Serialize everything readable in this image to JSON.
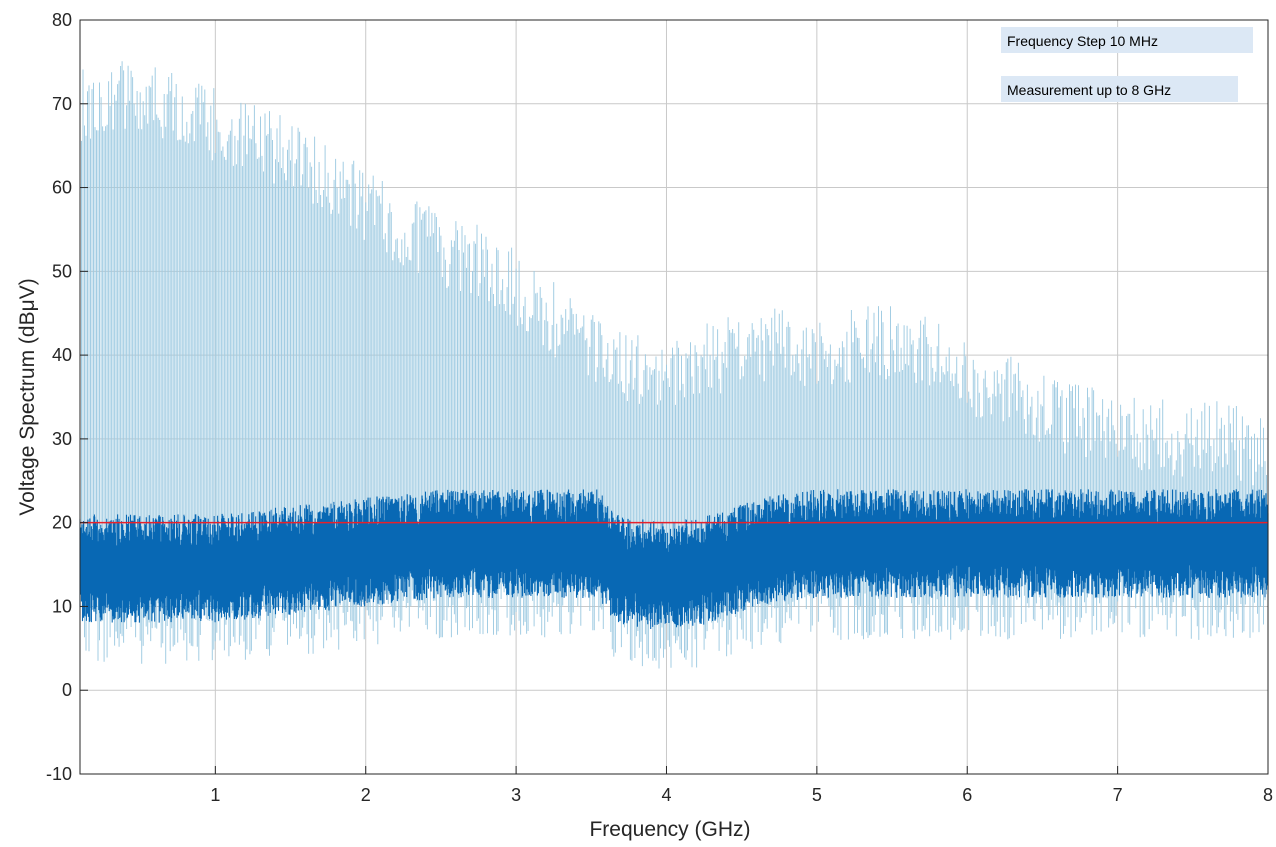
{
  "chart_data": {
    "type": "line",
    "title": "",
    "xlabel": "Frequency (GHz)",
    "ylabel": "Voltage Spectrum (dBμV)",
    "xlim": [
      0.1,
      8
    ],
    "ylim": [
      -10,
      80
    ],
    "xticks": [
      1,
      2,
      3,
      4,
      5,
      6,
      7,
      8
    ],
    "xtick_labels": [
      "1",
      "2",
      "3",
      "4",
      "5",
      "6",
      "7",
      "8"
    ],
    "yticks": [
      -10,
      0,
      10,
      20,
      30,
      40,
      50,
      60,
      70,
      80
    ],
    "ytick_labels": [
      "-10",
      "0",
      "10",
      "20",
      "30",
      "40",
      "50",
      "60",
      "70",
      "80"
    ],
    "grid": true,
    "frequency_step_ghz": 0.01,
    "series": [
      {
        "role": "peak-envelope",
        "color": "#9ecae1",
        "x": [
          0.1,
          0.3,
          0.5,
          0.7,
          0.9,
          1.1,
          1.3,
          1.5,
          1.7,
          1.9,
          2.1,
          2.3,
          2.5,
          2.7,
          2.9,
          3.1,
          3.3,
          3.5,
          3.7,
          3.9,
          4.1,
          4.3,
          4.5,
          4.7,
          4.9,
          5.1,
          5.3,
          5.5,
          5.7,
          5.9,
          6.1,
          6.3,
          6.5,
          6.7,
          6.9,
          7.1,
          7.3,
          7.5,
          7.7,
          7.9,
          8.0
        ],
        "values": [
          74,
          76,
          75,
          74,
          73,
          71,
          70,
          68,
          66,
          64,
          61,
          59,
          57,
          56,
          54,
          51,
          48,
          46,
          43,
          42,
          43,
          44,
          45,
          46,
          45,
          45,
          46,
          46,
          45,
          43,
          41,
          40,
          38,
          37,
          36,
          35,
          35,
          34,
          35,
          33,
          32
        ]
      },
      {
        "role": "noise-floor",
        "color": "#0868b4",
        "x": [
          0.1,
          0.5,
          1.0,
          1.5,
          2.0,
          2.5,
          3.0,
          3.55,
          3.65,
          4.0,
          4.3,
          4.6,
          5.0,
          5.5,
          6.0,
          6.5,
          7.0,
          7.5,
          8.0
        ],
        "values": [
          15,
          15,
          15,
          16,
          17,
          18,
          18,
          18,
          15,
          14,
          15,
          17,
          18,
          18,
          18,
          18,
          18,
          18,
          18
        ]
      },
      {
        "role": "threshold",
        "color": "#e8202a",
        "x": [
          0.1,
          8
        ],
        "values": [
          20,
          20
        ]
      }
    ],
    "annotations": [
      "Frequency Step 10 MHz",
      "Measurement up to 8 GHz"
    ]
  }
}
